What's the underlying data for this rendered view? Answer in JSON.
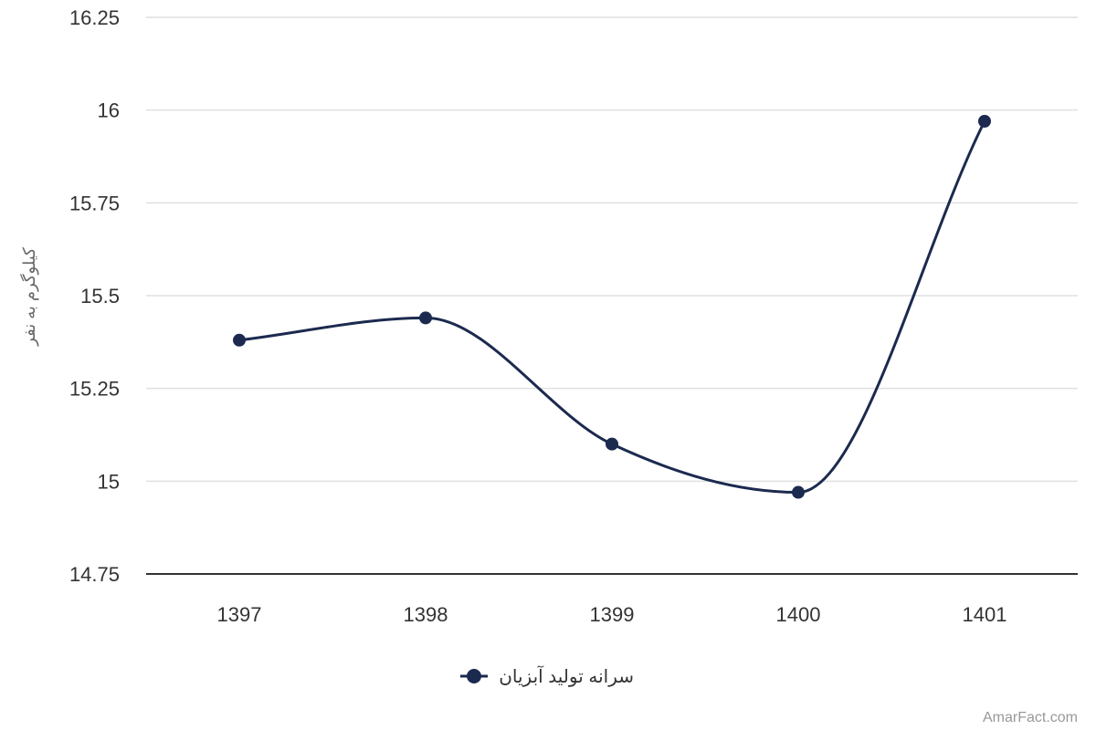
{
  "chart_data": {
    "type": "line",
    "x": [
      "1397",
      "1398",
      "1399",
      "1400",
      "1401"
    ],
    "series": [
      {
        "name": "سرانه تولید آبزیان",
        "values": [
          15.38,
          15.44,
          15.1,
          14.97,
          15.97
        ],
        "color": "#1c2a4f"
      }
    ],
    "ylabel": "کیلوگرم به نفر",
    "ylim": [
      14.75,
      16.25
    ],
    "yticks": [
      "16.25",
      "16",
      "15.75",
      "15.5",
      "15.25",
      "15",
      "14.75"
    ],
    "ytick_values": [
      16.25,
      16,
      15.75,
      15.5,
      15.25,
      15,
      14.75
    ],
    "grid": true,
    "legend_position": "bottom",
    "smooth": true
  },
  "credit": "AmarFact.com",
  "colors": {
    "grid": "#e0e0e0",
    "axis": "#333333",
    "series": "#1c2a4f"
  }
}
